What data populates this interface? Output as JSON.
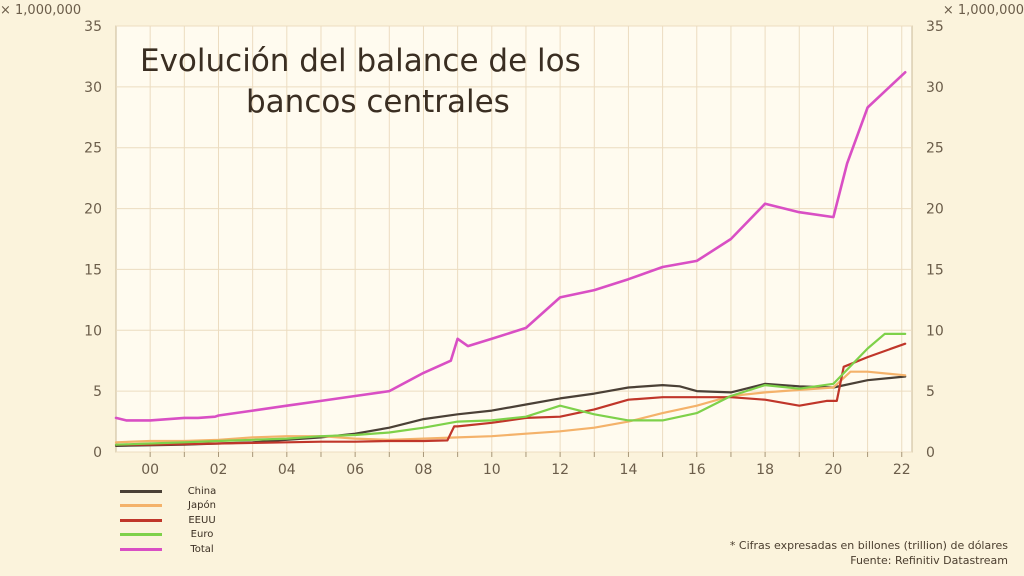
{
  "chart_data": {
    "type": "line",
    "title_lines": [
      "Evolución del balance de los",
      "bancos centrales"
    ],
    "multiplier_left": "× 1,000,000",
    "multiplier_right": "× 1,000,000",
    "ylim": [
      0,
      35
    ],
    "y_ticks": [
      0,
      5,
      10,
      15,
      20,
      25,
      30,
      35
    ],
    "x_tick_labels": [
      "00",
      "02",
      "04",
      "06",
      "08",
      "10",
      "12",
      "14",
      "16",
      "18",
      "20",
      "22"
    ],
    "xlim": [
      1999.0,
      2022.3
    ],
    "grid": true,
    "series": [
      {
        "name": "China",
        "color": "#4a4036",
        "points": [
          [
            1999.0,
            0.5
          ],
          [
            2000,
            0.55
          ],
          [
            2001,
            0.6
          ],
          [
            2002,
            0.7
          ],
          [
            2003,
            0.8
          ],
          [
            2004,
            1.0
          ],
          [
            2005,
            1.2
          ],
          [
            2006,
            1.5
          ],
          [
            2007,
            2.0
          ],
          [
            2008,
            2.7
          ],
          [
            2009,
            3.1
          ],
          [
            2010,
            3.4
          ],
          [
            2011,
            3.9
          ],
          [
            2012,
            4.4
          ],
          [
            2013,
            4.8
          ],
          [
            2014,
            5.3
          ],
          [
            2015,
            5.5
          ],
          [
            2015.5,
            5.4
          ],
          [
            2016,
            5.0
          ],
          [
            2017,
            4.9
          ],
          [
            2018,
            5.6
          ],
          [
            2019,
            5.4
          ],
          [
            2020,
            5.3
          ],
          [
            2021,
            5.9
          ],
          [
            2022.1,
            6.2
          ]
        ]
      },
      {
        "name": "Japón",
        "color": "#f4b26a",
        "points": [
          [
            1999.0,
            0.8
          ],
          [
            2000,
            0.9
          ],
          [
            2001,
            0.9
          ],
          [
            2002,
            1.0
          ],
          [
            2003,
            1.2
          ],
          [
            2004,
            1.3
          ],
          [
            2005,
            1.3
          ],
          [
            2006,
            1.1
          ],
          [
            2007,
            1.0
          ],
          [
            2008,
            1.1
          ],
          [
            2009,
            1.2
          ],
          [
            2010,
            1.3
          ],
          [
            2011,
            1.5
          ],
          [
            2012,
            1.7
          ],
          [
            2013,
            2.0
          ],
          [
            2014,
            2.5
          ],
          [
            2015,
            3.2
          ],
          [
            2016,
            3.8
          ],
          [
            2017,
            4.6
          ],
          [
            2018,
            4.9
          ],
          [
            2019,
            5.1
          ],
          [
            2020,
            5.3
          ],
          [
            2020.5,
            6.6
          ],
          [
            2021,
            6.6
          ],
          [
            2022.1,
            6.3
          ]
        ]
      },
      {
        "name": "EEUU",
        "color": "#c0362a",
        "points": [
          [
            1999.0,
            0.6
          ],
          [
            2000,
            0.6
          ],
          [
            2001,
            0.65
          ],
          [
            2002,
            0.7
          ],
          [
            2003,
            0.75
          ],
          [
            2004,
            0.8
          ],
          [
            2005,
            0.85
          ],
          [
            2006,
            0.85
          ],
          [
            2007,
            0.9
          ],
          [
            2008,
            0.9
          ],
          [
            2008.7,
            0.95
          ],
          [
            2008.9,
            2.1
          ],
          [
            2009,
            2.1
          ],
          [
            2010,
            2.4
          ],
          [
            2011,
            2.8
          ],
          [
            2012,
            2.9
          ],
          [
            2013,
            3.5
          ],
          [
            2014,
            4.3
          ],
          [
            2015,
            4.5
          ],
          [
            2016,
            4.5
          ],
          [
            2017,
            4.5
          ],
          [
            2018,
            4.3
          ],
          [
            2019,
            3.8
          ],
          [
            2019.8,
            4.2
          ],
          [
            2020.1,
            4.2
          ],
          [
            2020.3,
            7.0
          ],
          [
            2021,
            7.8
          ],
          [
            2022.1,
            8.9
          ]
        ]
      },
      {
        "name": "Euro",
        "color": "#7ed14a",
        "points": [
          [
            1999.0,
            0.6
          ],
          [
            2000,
            0.7
          ],
          [
            2001,
            0.8
          ],
          [
            2002,
            0.9
          ],
          [
            2003,
            1.0
          ],
          [
            2004,
            1.1
          ],
          [
            2005,
            1.3
          ],
          [
            2006,
            1.4
          ],
          [
            2007,
            1.6
          ],
          [
            2008,
            2.0
          ],
          [
            2009,
            2.5
          ],
          [
            2010,
            2.6
          ],
          [
            2011,
            2.9
          ],
          [
            2012,
            3.8
          ],
          [
            2013,
            3.1
          ],
          [
            2014,
            2.6
          ],
          [
            2015,
            2.6
          ],
          [
            2016,
            3.2
          ],
          [
            2017,
            4.6
          ],
          [
            2018,
            5.5
          ],
          [
            2019,
            5.2
          ],
          [
            2020,
            5.6
          ],
          [
            2021,
            8.5
          ],
          [
            2021.5,
            9.7
          ],
          [
            2022.1,
            9.7
          ]
        ]
      },
      {
        "name": "Total",
        "color": "#d94fc4",
        "points": [
          [
            1999.0,
            2.8
          ],
          [
            1999.3,
            2.6
          ],
          [
            2000,
            2.6
          ],
          [
            2001,
            2.8
          ],
          [
            2001.4,
            2.8
          ],
          [
            2001.9,
            2.9
          ],
          [
            2002,
            3.0
          ],
          [
            2003,
            3.4
          ],
          [
            2004,
            3.8
          ],
          [
            2005,
            4.2
          ],
          [
            2006,
            4.6
          ],
          [
            2007,
            5.0
          ],
          [
            2008,
            6.5
          ],
          [
            2008.8,
            7.5
          ],
          [
            2009,
            9.3
          ],
          [
            2009.3,
            8.7
          ],
          [
            2010,
            9.3
          ],
          [
            2011,
            10.2
          ],
          [
            2012,
            12.7
          ],
          [
            2013,
            13.3
          ],
          [
            2014,
            14.2
          ],
          [
            2015,
            15.2
          ],
          [
            2016,
            15.7
          ],
          [
            2017,
            17.5
          ],
          [
            2018,
            20.4
          ],
          [
            2019,
            19.7
          ],
          [
            2020,
            19.3
          ],
          [
            2020.4,
            23.7
          ],
          [
            2021,
            28.3
          ],
          [
            2022.1,
            31.2
          ]
        ]
      }
    ],
    "legend_position": "bottom-left"
  },
  "footnote": {
    "line1": "* Cifras expresadas en billones (trillion) de dólares",
    "line2": "Fuente: Refinitiv Datastream"
  }
}
